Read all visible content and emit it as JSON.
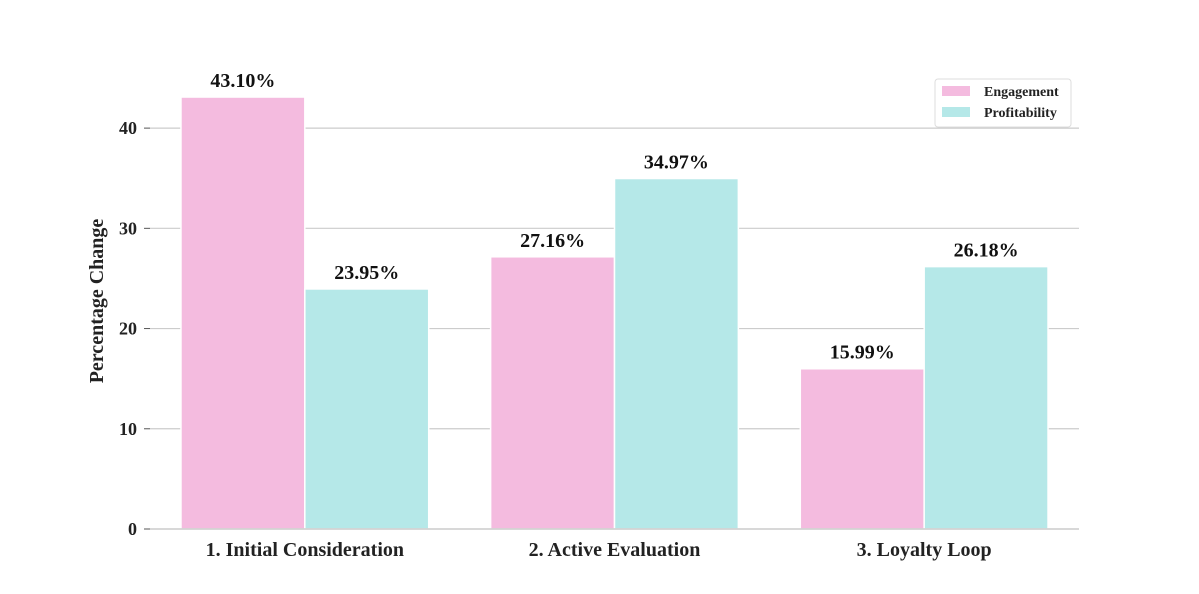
{
  "chart_data": {
    "type": "bar",
    "title": "",
    "xlabel": "",
    "ylabel": "Percentage Change",
    "categories": [
      "1. Initial Consideration",
      "2. Active Evaluation",
      "3. Loyalty Loop"
    ],
    "series": [
      {
        "name": "Engagement",
        "values": [
          43.1,
          27.16,
          15.99
        ],
        "color": "#f4bbdf"
      },
      {
        "name": "Profitability",
        "values": [
          23.95,
          34.97,
          26.18
        ],
        "color": "#b5e8e8"
      }
    ],
    "data_labels": [
      [
        "43.10%",
        "27.16%",
        "15.99%"
      ],
      [
        "23.95%",
        "34.97%",
        "26.18%"
      ]
    ],
    "ylim": [
      0,
      45
    ],
    "yticks": [
      0,
      10,
      20,
      30,
      40
    ],
    "grid": "horizontal",
    "legend_position": "top-right"
  }
}
